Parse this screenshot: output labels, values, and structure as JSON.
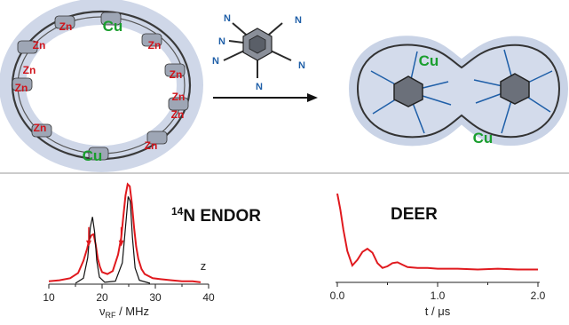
{
  "top": {
    "ring_left": {
      "copper_labels": [
        "Cu",
        "Cu"
      ],
      "zinc_labels": [
        "Zn",
        "Zn",
        "Zn",
        "Zn",
        "Zn",
        "Zn",
        "Zn",
        "Zn",
        "Zn",
        "Zn"
      ]
    },
    "template": {
      "nitrogen_labels": [
        "N",
        "N",
        "N",
        "N",
        "N",
        "N"
      ]
    },
    "complex_right": {
      "copper_labels": [
        "Cu",
        "Cu"
      ]
    },
    "colors": {
      "zinc": "#d0141b",
      "copper": "#1a9e2e",
      "nitrogen": "#1f5fa8",
      "halo": "#c9d3e6",
      "bond": "#333333"
    }
  },
  "bottom": {
    "endor": {
      "title_sup": "14",
      "title_main": "N ENDOR",
      "x_ticks": [
        "10",
        "20",
        "30",
        "40"
      ],
      "x_label_base": "ν",
      "x_label_sub": "RF",
      "x_label_rest": " / MHz",
      "z_label": "z"
    },
    "deer": {
      "title": "DEER",
      "x_ticks": [
        "0.0",
        "1.0",
        "2.0"
      ],
      "x_label": "t / μs"
    }
  },
  "chart_data": [
    {
      "type": "line",
      "title": "14N ENDOR",
      "xlabel": "νRF / MHz",
      "xlim": [
        10,
        40
      ],
      "series": [
        {
          "color": "#e0191e",
          "x": [
            10,
            12,
            14,
            15.5,
            16.5,
            17.2,
            17.6,
            18.0,
            18.4,
            18.8,
            19.2,
            19.6,
            20.0,
            21.0,
            22.0,
            23.0,
            23.6,
            24.0,
            24.4,
            24.8,
            25.2,
            25.6,
            26.0,
            26.4,
            26.8,
            27.4,
            28.0,
            29.5,
            31,
            33,
            35,
            37,
            38.5
          ],
          "y": [
            0.02,
            0.03,
            0.05,
            0.1,
            0.22,
            0.34,
            0.43,
            0.47,
            0.48,
            0.38,
            0.24,
            0.16,
            0.11,
            0.09,
            0.12,
            0.28,
            0.45,
            0.66,
            0.86,
            0.97,
            0.95,
            0.78,
            0.55,
            0.36,
            0.24,
            0.14,
            0.09,
            0.05,
            0.04,
            0.03,
            0.02,
            0.02,
            0.01
          ]
        },
        {
          "color": "#111111",
          "x": [
            15,
            16.5,
            17.3,
            17.8,
            18.2,
            18.6,
            19.0,
            19.5,
            20.5,
            22.5,
            23.8,
            24.4,
            24.9,
            25.3,
            25.7,
            26.2,
            27.0,
            29.0
          ],
          "y": [
            0.0,
            0.05,
            0.25,
            0.55,
            0.65,
            0.5,
            0.22,
            0.06,
            0.01,
            0.02,
            0.2,
            0.55,
            0.85,
            0.8,
            0.45,
            0.15,
            0.03,
            0.0
          ]
        }
      ],
      "markers": [
        17.5,
        23.6
      ]
    },
    {
      "type": "line",
      "title": "DEER",
      "xlabel": "t / μs",
      "xlim": [
        0.0,
        2.0
      ],
      "series": [
        {
          "color": "#e0191e",
          "x": [
            0.0,
            0.03,
            0.06,
            0.1,
            0.15,
            0.2,
            0.25,
            0.3,
            0.35,
            0.4,
            0.45,
            0.5,
            0.55,
            0.6,
            0.65,
            0.7,
            0.8,
            0.9,
            1.0,
            1.2,
            1.4,
            1.6,
            1.8,
            2.0
          ],
          "y": [
            1.0,
            0.8,
            0.55,
            0.28,
            0.1,
            0.17,
            0.27,
            0.31,
            0.26,
            0.13,
            0.07,
            0.09,
            0.13,
            0.14,
            0.11,
            0.08,
            0.07,
            0.07,
            0.06,
            0.06,
            0.05,
            0.06,
            0.05,
            0.05
          ]
        }
      ]
    }
  ]
}
